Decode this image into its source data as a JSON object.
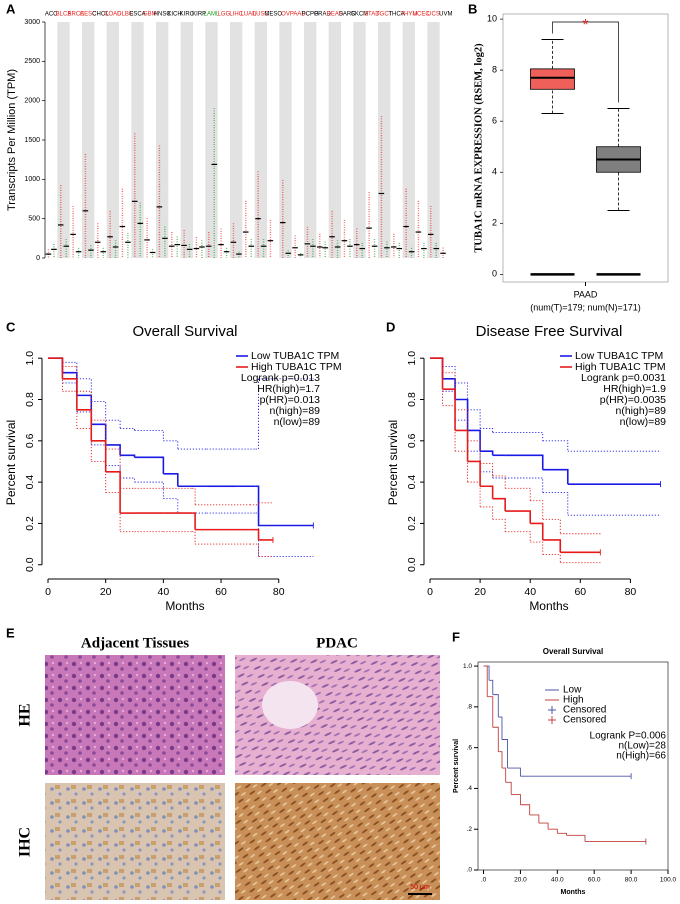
{
  "chart_data": [
    {
      "panel_label": "A",
      "type": "dot_strip",
      "y_label": "Transcripts Per Million (TPM)",
      "categories": [
        "ACC",
        "BLCA",
        "BRCA",
        "CESC",
        "CHOL",
        "COAD",
        "DLBC",
        "ESCA",
        "GBM",
        "HNSC",
        "KICH",
        "KIRC",
        "KIRP",
        "LAML",
        "LGG",
        "LIHC",
        "LUAD",
        "LUSC",
        "MESO",
        "OV",
        "PAAD",
        "PCPG",
        "PRAD",
        "READ",
        "SARC",
        "SKCM",
        "STAD",
        "TGCT",
        "THCA",
        "THYM",
        "UCEC",
        "UCS",
        "UVM"
      ],
      "label_colors": [
        "#000000",
        "#e8231f",
        "#e8231f",
        "#e8231f",
        "#000000",
        "#e8231f",
        "#e8231f",
        "#000000",
        "#e8231f",
        "#000000",
        "#000000",
        "#000000",
        "#000000",
        "#1a9a1a",
        "#e8231f",
        "#e8231f",
        "#e8231f",
        "#e8231f",
        "#000000",
        "#e8231f",
        "#e8231f",
        "#000000",
        "#000000",
        "#e8231f",
        "#000000",
        "#000000",
        "#e8231f",
        "#e8231f",
        "#000000",
        "#e8231f",
        "#e8231f",
        "#e8231f",
        "#000000"
      ],
      "tumor_color": "#e8231f",
      "normal_color": "#1f9a2a",
      "tumor_medians": [
        50,
        420,
        300,
        600,
        200,
        270,
        400,
        720,
        230,
        650,
        150,
        160,
        120,
        150,
        170,
        200,
        330,
        500,
        220,
        450,
        130,
        180,
        140,
        270,
        220,
        170,
        380,
        820,
        140,
        400,
        330,
        300,
        60
      ],
      "normal_medians": [
        110,
        150,
        80,
        100,
        80,
        140,
        200,
        440,
        70,
        250,
        170,
        110,
        140,
        1190,
        80,
        50,
        150,
        150,
        null,
        60,
        40,
        150,
        130,
        140,
        150,
        120,
        150,
        130,
        120,
        80,
        120,
        120,
        null
      ],
      "ylim": [
        0,
        3000
      ],
      "yticks": [
        0,
        500,
        1000,
        1500,
        2000,
        2500,
        3000
      ]
    },
    {
      "panel_label": "B",
      "type": "box",
      "y_label": "TUBA1C mRNA EXPRESSION (RSEM, log2)",
      "categories": [
        "PAAD"
      ],
      "x_sublabel": "(num(T)=179; num(N)=171)",
      "significance": "*",
      "boxes": [
        {
          "color": "#f0605a",
          "whisker_low": 6.3,
          "q1": 7.25,
          "median": 7.7,
          "q3": 8.05,
          "whisker_high": 9.2
        },
        {
          "color": "#7f7f7f",
          "whisker_low": 2.5,
          "q1": 4.0,
          "median": 4.5,
          "q3": 5.0,
          "whisker_high": 6.5
        }
      ],
      "ylim": [
        -0.3,
        10.2
      ],
      "yticks": [
        0,
        2,
        4,
        6,
        8,
        10
      ]
    },
    {
      "panel_label": "C",
      "type": "survival",
      "title": "Overall Survival",
      "x_label": "Months",
      "y_label": "Percent survival",
      "series": [
        {
          "name": "Low TUBA1C TPM",
          "color": "#1a1ae6",
          "times": [
            0,
            5,
            10,
            15,
            20,
            25,
            30,
            40,
            45,
            55,
            60,
            65,
            72,
            73,
            92
          ],
          "values": [
            1,
            0.93,
            0.82,
            0.68,
            0.58,
            0.53,
            0.52,
            0.44,
            0.38,
            0.38,
            0.38,
            0.38,
            0.38,
            0.19,
            0.19
          ],
          "ci_upper": [
            1,
            0.98,
            0.9,
            0.79,
            0.7,
            0.66,
            0.65,
            0.6,
            0.56,
            0.56,
            0.56,
            0.56,
            0.56,
            0.9,
            0.9
          ],
          "ci_lower": [
            1,
            0.88,
            0.74,
            0.58,
            0.48,
            0.42,
            0.4,
            0.32,
            0.25,
            0.25,
            0.25,
            0.25,
            0.25,
            0.04,
            0.04
          ]
        },
        {
          "name": "High TUBA1C TPM",
          "color": "#e61a1a",
          "times": [
            0,
            5,
            10,
            15,
            20,
            25,
            30,
            40,
            50,
            51,
            70,
            73,
            78
          ],
          "values": [
            1,
            0.9,
            0.75,
            0.6,
            0.45,
            0.25,
            0.25,
            0.25,
            0.25,
            0.17,
            0.17,
            0.12,
            0.12
          ],
          "ci_upper": [
            1,
            0.96,
            0.84,
            0.7,
            0.56,
            0.37,
            0.37,
            0.37,
            0.37,
            0.29,
            0.29,
            0.3,
            0.3
          ],
          "ci_lower": [
            1,
            0.84,
            0.66,
            0.5,
            0.35,
            0.16,
            0.16,
            0.16,
            0.16,
            0.1,
            0.1,
            0.04,
            0.04
          ]
        }
      ],
      "annotations": [
        "Logrank p=0.013",
        "HR(high)=1.7",
        "p(HR)=0.013",
        "n(high)=89",
        "n(low)=89"
      ],
      "xlim": [
        0,
        95
      ],
      "ylim": [
        -0.04,
        1.03
      ],
      "xticks": [
        0,
        20,
        40,
        60,
        80
      ],
      "yticks": [
        {
          "value": 0,
          "label": "0.0"
        },
        {
          "value": 0.2,
          "label": "0.2"
        },
        {
          "value": 0.4,
          "label": "0.4"
        },
        {
          "value": 0.6,
          "label": "0.6"
        },
        {
          "value": 0.8,
          "label": "0.8"
        },
        {
          "value": 1,
          "label": "1.0"
        }
      ]
    },
    {
      "panel_label": "D",
      "type": "survival",
      "title": "Disease Free Survival",
      "x_label": "Months",
      "y_label": "Percent survival",
      "series": [
        {
          "name": "Low TUBA1C TPM",
          "color": "#1a1ae6",
          "times": [
            0,
            5,
            10,
            15,
            20,
            25,
            30,
            45,
            55,
            92
          ],
          "values": [
            1,
            0.9,
            0.8,
            0.65,
            0.55,
            0.53,
            0.53,
            0.46,
            0.39,
            0.39
          ],
          "ci_upper": [
            1,
            0.96,
            0.88,
            0.75,
            0.66,
            0.64,
            0.64,
            0.6,
            0.55,
            0.55
          ],
          "ci_lower": [
            1,
            0.84,
            0.7,
            0.55,
            0.45,
            0.42,
            0.42,
            0.35,
            0.24,
            0.24
          ]
        },
        {
          "name": "High TUBA1C TPM",
          "color": "#e61a1a",
          "times": [
            0,
            5,
            10,
            15,
            20,
            25,
            30,
            40,
            45,
            52,
            68
          ],
          "values": [
            1,
            0.85,
            0.65,
            0.5,
            0.38,
            0.32,
            0.26,
            0.2,
            0.12,
            0.06,
            0.06
          ],
          "ci_upper": [
            1,
            0.93,
            0.75,
            0.6,
            0.49,
            0.43,
            0.37,
            0.31,
            0.22,
            0.15,
            0.15
          ],
          "ci_lower": [
            1,
            0.77,
            0.55,
            0.4,
            0.28,
            0.22,
            0.16,
            0.11,
            0.05,
            0.01,
            0.01
          ]
        }
      ],
      "annotations": [
        "Logrank p=0.0031",
        "HR(high)=1.9",
        "p(HR)=0.0035",
        "n(high)=89",
        "n(low)=89"
      ],
      "xlim": [
        0,
        95
      ],
      "ylim": [
        -0.04,
        1.03
      ],
      "xticks": [
        0,
        20,
        40,
        60,
        80
      ],
      "yticks": [
        {
          "value": 0,
          "label": "0.0"
        },
        {
          "value": 0.2,
          "label": "0.2"
        },
        {
          "value": 0.4,
          "label": "0.4"
        },
        {
          "value": 0.6,
          "label": "0.6"
        },
        {
          "value": 0.8,
          "label": "0.8"
        },
        {
          "value": 1,
          "label": "1.0"
        }
      ]
    },
    {
      "panel_label": "F",
      "type": "survival",
      "title": "Overall Survival",
      "x_label": "Months",
      "y_label": "Percent survival",
      "series": [
        {
          "name": "Low",
          "color": "#4a55a8",
          "times": [
            0,
            3,
            5,
            8,
            10,
            13,
            20,
            25,
            80
          ],
          "values": [
            1,
            0.93,
            0.86,
            0.75,
            0.64,
            0.5,
            0.46,
            0.46,
            0.46
          ]
        },
        {
          "name": "High",
          "color": "#c0403c",
          "times": [
            0,
            2,
            5,
            8,
            10,
            12,
            15,
            20,
            25,
            30,
            35,
            40,
            45,
            55,
            88
          ],
          "values": [
            1,
            0.85,
            0.7,
            0.58,
            0.5,
            0.43,
            0.37,
            0.32,
            0.27,
            0.23,
            0.2,
            0.18,
            0.17,
            0.14,
            0.14
          ]
        }
      ],
      "censor_legend": [
        {
          "name": "Censored",
          "color": "#4a55a8"
        },
        {
          "name": "Censored",
          "color": "#c0403c"
        }
      ],
      "annotations": [
        "Logrank P=0.006",
        "n(Low)=28",
        "n(High)=66"
      ],
      "xlim": [
        -3,
        100
      ],
      "ylim": [
        0,
        1.02
      ],
      "xticks": [
        {
          "value": 0,
          "label": ".0"
        },
        {
          "value": 20,
          "label": "20.0"
        },
        {
          "value": 40,
          "label": "40.0"
        },
        {
          "value": 60,
          "label": "60.0"
        },
        {
          "value": 80,
          "label": "80.0"
        },
        {
          "value": 100,
          "label": "100.0"
        }
      ],
      "yticks": [
        {
          "value": 0,
          "label": ".0"
        },
        {
          "value": 0.2,
          "label": ".2"
        },
        {
          "value": 0.4,
          "label": ".4"
        },
        {
          "value": 0.6,
          "label": ".6"
        },
        {
          "value": 0.8,
          "label": ".8"
        },
        {
          "value": 1,
          "label": "1.0"
        }
      ]
    }
  ],
  "histology": {
    "panel_label": "E",
    "columns": [
      "Adjacent Tissues",
      "PDAC"
    ],
    "rows": [
      "HE",
      "IHC"
    ],
    "scale_bar": "50 μm"
  }
}
